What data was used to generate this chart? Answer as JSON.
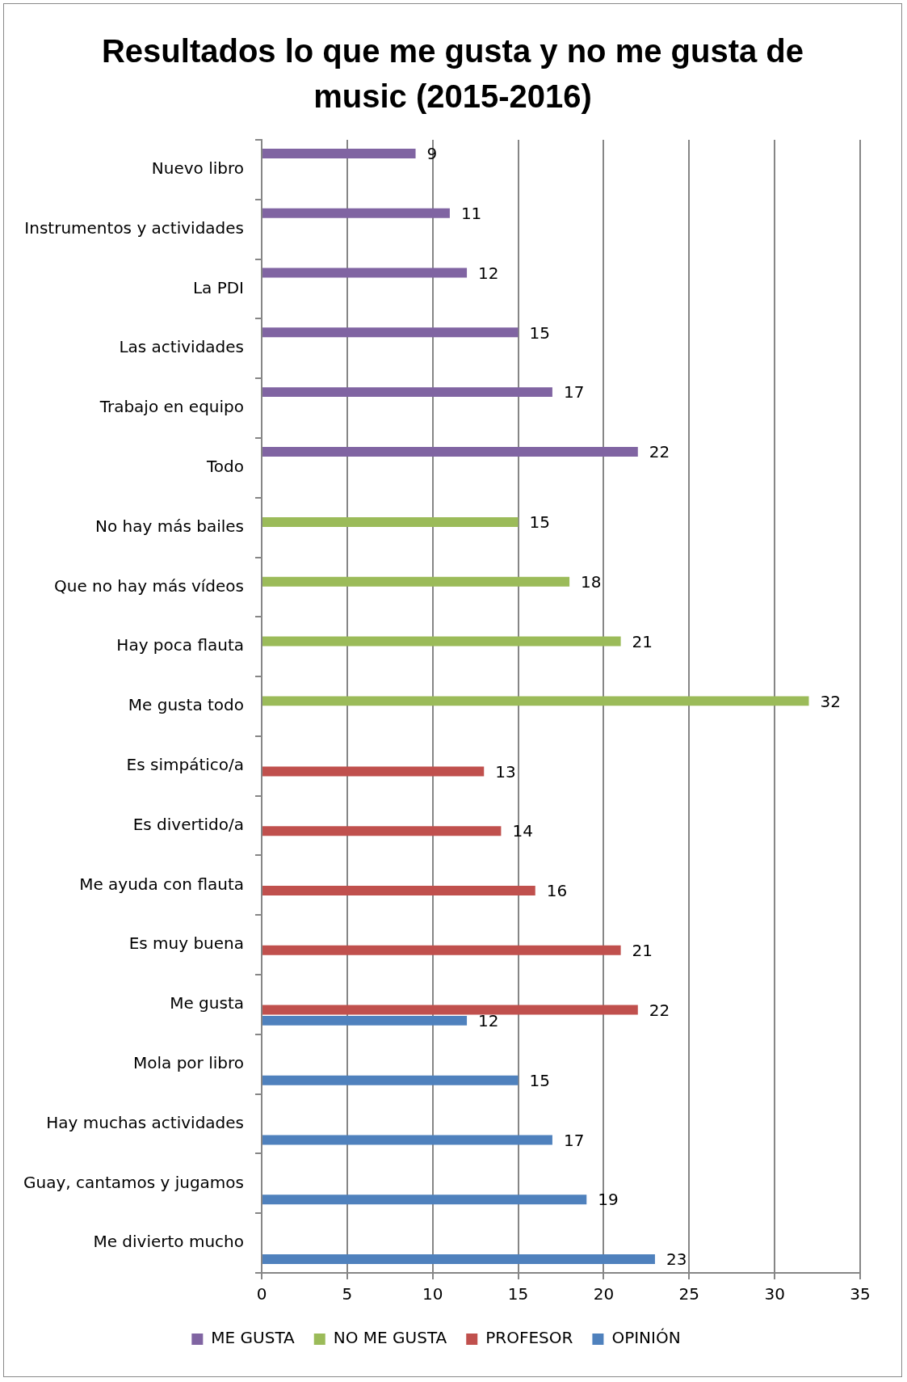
{
  "chart_data": {
    "type": "bar",
    "orientation": "horizontal",
    "title": "Resultados lo que me gusta y no me gusta de music (2015-2016)",
    "categories": [
      "Nuevo libro",
      "Instrumentos y actividades",
      "La PDI",
      "Las actividades",
      "Trabajo en equipo",
      "Todo",
      "No hay más bailes",
      "Que no hay más vídeos",
      "Hay poca flauta",
      "Me gusta todo",
      "Es simpático/a",
      "Es divertido/a",
      "Me ayuda con flauta",
      "Es muy buena",
      "Me gusta",
      "Mola por libro",
      "Hay muchas actividades",
      "Guay, cantamos y jugamos",
      "Me divierto mucho"
    ],
    "series": [
      {
        "name": "ME GUSTA",
        "color": "#8064a2",
        "values": [
          9,
          11,
          12,
          15,
          17,
          22,
          null,
          null,
          null,
          null,
          null,
          null,
          null,
          null,
          null,
          null,
          null,
          null,
          null
        ]
      },
      {
        "name": "NO ME GUSTA",
        "color": "#9bbb59",
        "values": [
          null,
          null,
          null,
          null,
          null,
          null,
          15,
          18,
          21,
          32,
          null,
          null,
          null,
          null,
          null,
          null,
          null,
          null,
          null
        ]
      },
      {
        "name": "PROFESOR",
        "color": "#c0504d",
        "values": [
          null,
          null,
          null,
          null,
          null,
          null,
          null,
          null,
          null,
          null,
          13,
          14,
          16,
          21,
          22,
          null,
          null,
          null,
          null
        ]
      },
      {
        "name": "OPINIÓN",
        "color": "#4f81bd",
        "values": [
          null,
          null,
          null,
          null,
          null,
          null,
          null,
          null,
          null,
          null,
          null,
          null,
          null,
          null,
          12,
          15,
          17,
          19,
          23
        ]
      }
    ],
    "xlim": [
      0,
      35
    ],
    "xticks": [
      0,
      5,
      10,
      15,
      20,
      25,
      30,
      35
    ],
    "grid": "x",
    "legend": "bottom",
    "data_labels": true
  }
}
